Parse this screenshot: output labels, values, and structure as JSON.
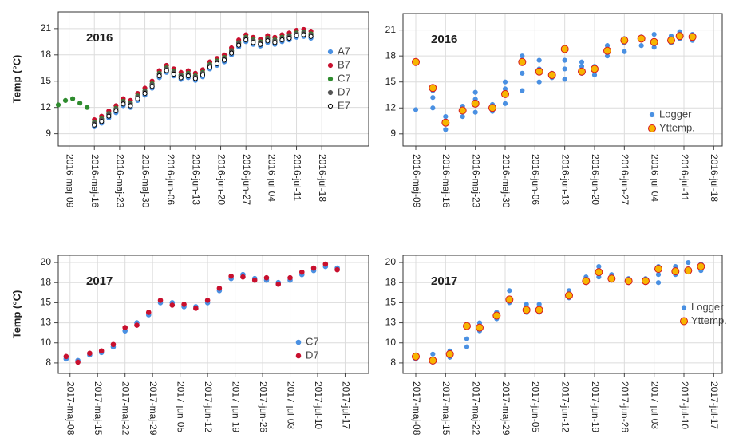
{
  "chart_data": [
    {
      "type": "scatter",
      "title": "2016",
      "y_label": "Temp (°C)",
      "legend": "right",
      "grid": true,
      "xlim": [
        "2016-05-06",
        "2016-07-31"
      ],
      "ylim": [
        7.6,
        22.9
      ],
      "xticks": [
        {
          "value": "2016-05-09",
          "label": "2016-maj-09"
        },
        {
          "value": "2016-05-16",
          "label": "2016-maj-16"
        },
        {
          "value": "2016-05-23",
          "label": "2016-maj-23"
        },
        {
          "value": "2016-05-30",
          "label": "2016-maj-30"
        },
        {
          "value": "2016-06-06",
          "label": "2016-jun-06"
        },
        {
          "value": "2016-06-13",
          "label": "2016-jun-13"
        },
        {
          "value": "2016-06-20",
          "label": "2016-jun-20"
        },
        {
          "value": "2016-06-27",
          "label": "2016-jun-27"
        },
        {
          "value": "2016-07-04",
          "label": "2016-jul-04"
        },
        {
          "value": "2016-07-11",
          "label": "2016-jul-11"
        },
        {
          "value": "2016-07-18",
          "label": "2016-jul-18"
        }
      ],
      "yticks": [
        9,
        12,
        15,
        18,
        21
      ],
      "x": [
        "2016-05-06",
        "2016-05-08",
        "2016-05-10",
        "2016-05-12",
        "2016-05-14",
        "2016-05-16",
        "2016-05-18",
        "2016-05-20",
        "2016-05-22",
        "2016-05-24",
        "2016-05-26",
        "2016-05-28",
        "2016-05-30",
        "2016-06-01",
        "2016-06-03",
        "2016-06-05",
        "2016-06-07",
        "2016-06-09",
        "2016-06-11",
        "2016-06-13",
        "2016-06-15",
        "2016-06-17",
        "2016-06-19",
        "2016-06-21",
        "2016-06-23",
        "2016-06-25",
        "2016-06-27",
        "2016-06-29",
        "2016-07-01",
        "2016-07-03",
        "2016-07-05",
        "2016-07-07",
        "2016-07-09",
        "2016-07-11",
        "2016-07-13",
        "2016-07-15"
      ],
      "series": [
        {
          "name": "A7",
          "color": "#4a90e2",
          "edgecolor": "#4a90e2",
          "markersize": 2.6,
          "values": [
            null,
            null,
            null,
            null,
            null,
            9.8,
            10.2,
            10.8,
            11.4,
            12.2,
            12.0,
            12.8,
            13.4,
            14.2,
            15.4,
            16.0,
            15.6,
            15.2,
            15.4,
            15.1,
            15.5,
            16.4,
            16.8,
            17.2,
            18.0,
            18.9,
            19.5,
            19.2,
            19.0,
            19.4,
            19.2,
            19.5,
            19.7,
            20.0,
            20.1,
            19.9
          ]
        },
        {
          "name": "B7",
          "color": "#c8102e",
          "edgecolor": "#c8102e",
          "markersize": 2.6,
          "values": [
            null,
            null,
            null,
            null,
            null,
            10.6,
            11.0,
            11.6,
            12.2,
            13.0,
            12.8,
            13.6,
            14.2,
            15.0,
            16.2,
            16.8,
            16.4,
            16.0,
            16.2,
            15.9,
            16.3,
            17.2,
            17.6,
            18.0,
            18.8,
            19.7,
            20.3,
            20.0,
            19.8,
            20.2,
            20.0,
            20.3,
            20.5,
            20.8,
            20.9,
            20.7
          ]
        },
        {
          "name": "C7",
          "color": "#2e8b2e",
          "edgecolor": "#2e8b2e",
          "markersize": 2.6,
          "values": [
            12.3,
            12.8,
            13.0,
            12.5,
            12.0,
            10.3,
            10.7,
            11.3,
            11.9,
            12.7,
            12.5,
            13.3,
            13.9,
            14.7,
            15.9,
            16.5,
            16.1,
            15.7,
            15.9,
            15.6,
            16.0,
            16.9,
            17.3,
            17.7,
            18.5,
            19.4,
            20.0,
            19.7,
            19.5,
            19.9,
            19.7,
            20.0,
            20.2,
            20.5,
            20.6,
            20.4
          ]
        },
        {
          "name": "D7",
          "color": "#555555",
          "edgecolor": "#555555",
          "markersize": 2.6,
          "values": [
            null,
            null,
            null,
            null,
            null,
            10.2,
            10.6,
            11.2,
            11.8,
            12.6,
            12.4,
            13.2,
            13.8,
            14.6,
            15.8,
            16.4,
            16.0,
            15.6,
            15.8,
            15.5,
            15.9,
            16.8,
            17.2,
            17.6,
            18.4,
            19.3,
            19.9,
            19.6,
            19.4,
            19.8,
            19.6,
            19.9,
            20.1,
            20.4,
            20.5,
            20.3
          ]
        },
        {
          "name": "E7",
          "color": "#ffffff",
          "edgecolor": "#000000",
          "markersize": 2.6,
          "values": [
            null,
            null,
            null,
            null,
            null,
            10.0,
            10.4,
            11.0,
            11.6,
            12.4,
            12.2,
            13.0,
            13.6,
            14.4,
            15.6,
            16.2,
            15.8,
            15.4,
            15.6,
            15.3,
            15.7,
            16.6,
            17.0,
            17.4,
            18.2,
            19.1,
            19.7,
            19.4,
            19.2,
            19.6,
            19.4,
            19.7,
            19.9,
            20.2,
            20.3,
            20.1
          ]
        }
      ]
    },
    {
      "type": "scatter",
      "title": "2016",
      "legend": "lower right",
      "grid": true,
      "xlim": [
        "2016-05-06",
        "2016-07-20"
      ],
      "ylim": [
        7.6,
        22.9
      ],
      "xticks": [
        {
          "value": "2016-05-09",
          "label": "2016-maj-09"
        },
        {
          "value": "2016-05-16",
          "label": "2016-maj-16"
        },
        {
          "value": "2016-05-23",
          "label": "2016-maj-23"
        },
        {
          "value": "2016-05-30",
          "label": "2016-maj-30"
        },
        {
          "value": "2016-06-06",
          "label": "2016-jun-06"
        },
        {
          "value": "2016-06-13",
          "label": "2016-jun-13"
        },
        {
          "value": "2016-06-20",
          "label": "2016-jun-20"
        },
        {
          "value": "2016-06-27",
          "label": "2016-jun-27"
        },
        {
          "value": "2016-07-04",
          "label": "2016-jul-04"
        },
        {
          "value": "2016-07-11",
          "label": "2016-jul-11"
        },
        {
          "value": "2016-07-18",
          "label": "2016-jul-18"
        }
      ],
      "yticks": [
        9,
        12,
        15,
        18,
        21
      ],
      "series": [
        {
          "name": "Logger",
          "color": "#4a90e2",
          "edgecolor": "#4a90e2",
          "markersize": 2.6,
          "x": [
            "2016-05-09",
            "2016-05-13",
            "2016-05-13",
            "2016-05-13",
            "2016-05-16",
            "2016-05-16",
            "2016-05-16",
            "2016-05-20",
            "2016-05-20",
            "2016-05-23",
            "2016-05-23",
            "2016-05-23",
            "2016-05-27",
            "2016-05-27",
            "2016-05-30",
            "2016-05-30",
            "2016-05-30",
            "2016-06-03",
            "2016-06-03",
            "2016-06-03",
            "2016-06-03",
            "2016-06-07",
            "2016-06-07",
            "2016-06-07",
            "2016-06-10",
            "2016-06-10",
            "2016-06-13",
            "2016-06-13",
            "2016-06-13",
            "2016-06-17",
            "2016-06-17",
            "2016-06-17",
            "2016-06-20",
            "2016-06-20",
            "2016-06-23",
            "2016-06-23",
            "2016-06-27",
            "2016-06-27",
            "2016-06-27",
            "2016-07-01",
            "2016-07-01",
            "2016-07-04",
            "2016-07-04",
            "2016-07-08",
            "2016-07-08",
            "2016-07-10",
            "2016-07-10",
            "2016-07-13",
            "2016-07-13"
          ],
          "values": [
            11.8,
            12.0,
            13.2,
            14.0,
            9.5,
            10.5,
            11.0,
            11.0,
            12.2,
            11.5,
            13.0,
            13.8,
            11.6,
            12.4,
            12.5,
            14.2,
            15.0,
            14.0,
            16.0,
            17.5,
            18.0,
            15.0,
            16.5,
            17.5,
            15.5,
            16.0,
            15.3,
            16.5,
            17.5,
            16.0,
            16.8,
            17.3,
            15.8,
            16.8,
            18.0,
            19.2,
            18.5,
            19.5,
            20.0,
            19.2,
            20.2,
            19.0,
            20.5,
            19.5,
            20.3,
            20.0,
            20.8,
            19.8,
            20.5
          ]
        },
        {
          "name": "Yttemp.",
          "color": "#f7b500",
          "edgecolor": "#d7191c",
          "markersize": 4.5,
          "x": [
            "2016-05-09",
            "2016-05-13",
            "2016-05-16",
            "2016-05-20",
            "2016-05-23",
            "2016-05-27",
            "2016-05-30",
            "2016-06-03",
            "2016-06-07",
            "2016-06-10",
            "2016-06-13",
            "2016-06-17",
            "2016-06-20",
            "2016-06-23",
            "2016-06-27",
            "2016-07-01",
            "2016-07-04",
            "2016-07-08",
            "2016-07-10",
            "2016-07-13"
          ],
          "values": [
            17.3,
            14.3,
            10.3,
            11.7,
            12.5,
            12.0,
            13.6,
            17.3,
            16.2,
            15.8,
            18.8,
            16.2,
            16.5,
            18.6,
            19.8,
            20.0,
            19.6,
            19.8,
            20.3,
            20.2
          ]
        }
      ]
    },
    {
      "type": "scatter",
      "title": "2017",
      "y_label": "Temp (°C)",
      "legend": "lower right",
      "grid": true,
      "xlim": [
        "2017-05-05",
        "2017-07-23"
      ],
      "ylim": [
        6.2,
        20.9
      ],
      "xticks": [
        {
          "value": "2017-05-08",
          "label": "2017-maj-08"
        },
        {
          "value": "2017-05-15",
          "label": "2017-maj-15"
        },
        {
          "value": "2017-05-22",
          "label": "2017-maj-22"
        },
        {
          "value": "2017-05-29",
          "label": "2017-maj-29"
        },
        {
          "value": "2017-06-05",
          "label": "2017-jun-05"
        },
        {
          "value": "2017-06-12",
          "label": "2017-jun-12"
        },
        {
          "value": "2017-06-19",
          "label": "2017-jun-19"
        },
        {
          "value": "2017-06-26",
          "label": "2017-jun-26"
        },
        {
          "value": "2017-07-03",
          "label": "2017-jul-03"
        },
        {
          "value": "2017-07-10",
          "label": "2017-jul-10"
        },
        {
          "value": "2017-07-17",
          "label": "2017-jul-17"
        }
      ],
      "yticks": [
        {
          "value": 7.5,
          "label": "8"
        },
        10,
        {
          "value": 12.5,
          "label": "13"
        },
        15,
        {
          "value": 17.5,
          "label": "18"
        },
        20
      ],
      "x": [
        "2017-05-07",
        "2017-05-10",
        "2017-05-13",
        "2017-05-16",
        "2017-05-19",
        "2017-05-22",
        "2017-05-25",
        "2017-05-28",
        "2017-05-31",
        "2017-06-03",
        "2017-06-06",
        "2017-06-09",
        "2017-06-12",
        "2017-06-15",
        "2017-06-18",
        "2017-06-21",
        "2017-06-24",
        "2017-06-27",
        "2017-06-30",
        "2017-07-03",
        "2017-07-06",
        "2017-07-09",
        "2017-07-12",
        "2017-07-15"
      ],
      "series": [
        {
          "name": "C7",
          "color": "#4a90e2",
          "edgecolor": "#4a90e2",
          "markersize": 2.8,
          "values": [
            8.0,
            7.8,
            8.5,
            8.8,
            9.5,
            11.5,
            12.5,
            13.5,
            15.0,
            15.0,
            14.5,
            14.5,
            15.0,
            16.5,
            18.0,
            18.5,
            18.0,
            17.8,
            17.5,
            17.8,
            18.5,
            19.0,
            19.5,
            19.3
          ]
        },
        {
          "name": "D7",
          "color": "#c8102e",
          "edgecolor": "#c8102e",
          "markersize": 2.8,
          "values": [
            8.3,
            7.6,
            8.7,
            9.0,
            9.8,
            11.9,
            12.2,
            13.8,
            15.3,
            14.7,
            14.8,
            14.3,
            15.3,
            16.8,
            18.3,
            18.2,
            17.8,
            18.1,
            17.3,
            18.1,
            18.8,
            19.3,
            19.8,
            19.1
          ]
        }
      ]
    },
    {
      "type": "scatter",
      "title": "2017",
      "legend": "right",
      "grid": true,
      "xlim": [
        "2017-05-05",
        "2017-07-19"
      ],
      "ylim": [
        6.2,
        20.9
      ],
      "xticks": [
        {
          "value": "2017-05-08",
          "label": "2017-maj-08"
        },
        {
          "value": "2017-05-15",
          "label": "2017-maj-15"
        },
        {
          "value": "2017-05-22",
          "label": "2017-maj-22"
        },
        {
          "value": "2017-05-29",
          "label": "2017-maj-29"
        },
        {
          "value": "2017-06-05",
          "label": "2017-jun-05"
        },
        {
          "value": "2017-06-12",
          "label": "2017-jun-12"
        },
        {
          "value": "2017-06-19",
          "label": "2017-jun-19"
        },
        {
          "value": "2017-06-26",
          "label": "2017-jun-26"
        },
        {
          "value": "2017-07-03",
          "label": "2017-jul-03"
        },
        {
          "value": "2017-07-10",
          "label": "2017-jul-10"
        },
        {
          "value": "2017-07-17",
          "label": "2017-jul-17"
        }
      ],
      "yticks": [
        {
          "value": 7.5,
          "label": "8"
        },
        10,
        {
          "value": 12.5,
          "label": "13"
        },
        15,
        {
          "value": 17.5,
          "label": "18"
        },
        20
      ],
      "series": [
        {
          "name": "Logger",
          "color": "#4a90e2",
          "edgecolor": "#4a90e2",
          "markersize": 2.6,
          "x": [
            "2017-05-08",
            "2017-05-08",
            "2017-05-12",
            "2017-05-12",
            "2017-05-16",
            "2017-05-16",
            "2017-05-20",
            "2017-05-20",
            "2017-05-20",
            "2017-05-23",
            "2017-05-23",
            "2017-05-27",
            "2017-05-27",
            "2017-05-30",
            "2017-05-30",
            "2017-06-03",
            "2017-06-03",
            "2017-06-06",
            "2017-06-06",
            "2017-06-13",
            "2017-06-13",
            "2017-06-17",
            "2017-06-17",
            "2017-06-20",
            "2017-06-20",
            "2017-06-23",
            "2017-06-23",
            "2017-06-27",
            "2017-06-27",
            "2017-07-01",
            "2017-07-01",
            "2017-07-04",
            "2017-07-04",
            "2017-07-04",
            "2017-07-08",
            "2017-07-08",
            "2017-07-11",
            "2017-07-11",
            "2017-07-14",
            "2017-07-14"
          ],
          "values": [
            8.0,
            8.5,
            7.6,
            8.6,
            8.2,
            9.0,
            9.5,
            10.5,
            12.3,
            11.5,
            12.5,
            13.0,
            13.8,
            15.0,
            16.5,
            13.8,
            14.8,
            13.8,
            14.8,
            15.6,
            16.5,
            17.5,
            18.2,
            18.2,
            19.5,
            17.8,
            18.5,
            17.5,
            18.0,
            17.5,
            18.0,
            17.5,
            18.5,
            19.5,
            18.5,
            19.5,
            19.2,
            20.0,
            19.0,
            19.8
          ]
        },
        {
          "name": "Yttemp.",
          "color": "#f7b500",
          "edgecolor": "#d7191c",
          "markersize": 4.5,
          "x": [
            "2017-05-08",
            "2017-05-12",
            "2017-05-16",
            "2017-05-20",
            "2017-05-23",
            "2017-05-27",
            "2017-05-30",
            "2017-06-03",
            "2017-06-06",
            "2017-06-13",
            "2017-06-17",
            "2017-06-20",
            "2017-06-23",
            "2017-06-27",
            "2017-07-01",
            "2017-07-04",
            "2017-07-08",
            "2017-07-11",
            "2017-07-14"
          ],
          "values": [
            8.3,
            7.8,
            8.6,
            12.1,
            11.9,
            13.4,
            15.4,
            14.1,
            14.1,
            15.9,
            17.7,
            18.8,
            18.0,
            17.7,
            17.7,
            19.2,
            18.9,
            19.0,
            19.5
          ]
        }
      ]
    }
  ]
}
